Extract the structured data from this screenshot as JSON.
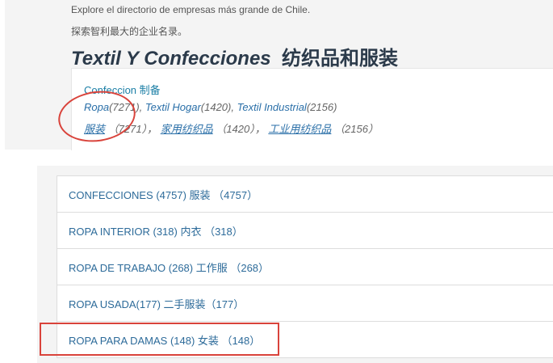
{
  "intro": {
    "es": "Explore el directorio de empresas más grande de Chile.",
    "zh": "探索智利最大的企业名录。"
  },
  "title": {
    "es": "Textil Y Confecciones",
    "zh": "纺织品和服装"
  },
  "card": {
    "category": "Confeccion 制备",
    "es_links": [
      {
        "label": "Ropa",
        "count": "(7271)"
      },
      {
        "label": "Textil Hogar",
        "count": "(1420)"
      },
      {
        "label": "Textil Industrial",
        "count": "(2156)"
      }
    ],
    "zh_links": [
      {
        "label": "服装",
        "count": "（7271），"
      },
      {
        "label": "家用纺织品",
        "count": "（1420），"
      },
      {
        "label": "工业用纺织品",
        "count": "（2156）"
      }
    ]
  },
  "list": [
    "CONFECCIONES (4757) 服装 （4757）",
    "ROPA INTERIOR (318) 内衣 （318）",
    "ROPA DE TRABAJO (268) 工作服 （268）",
    "ROPA USADA(177) 二手服装（177）",
    "ROPA PARA DAMAS (148) 女装 （148）"
  ],
  "colors": {
    "annotation": "#d9433b",
    "link": "#2a6fa8"
  }
}
